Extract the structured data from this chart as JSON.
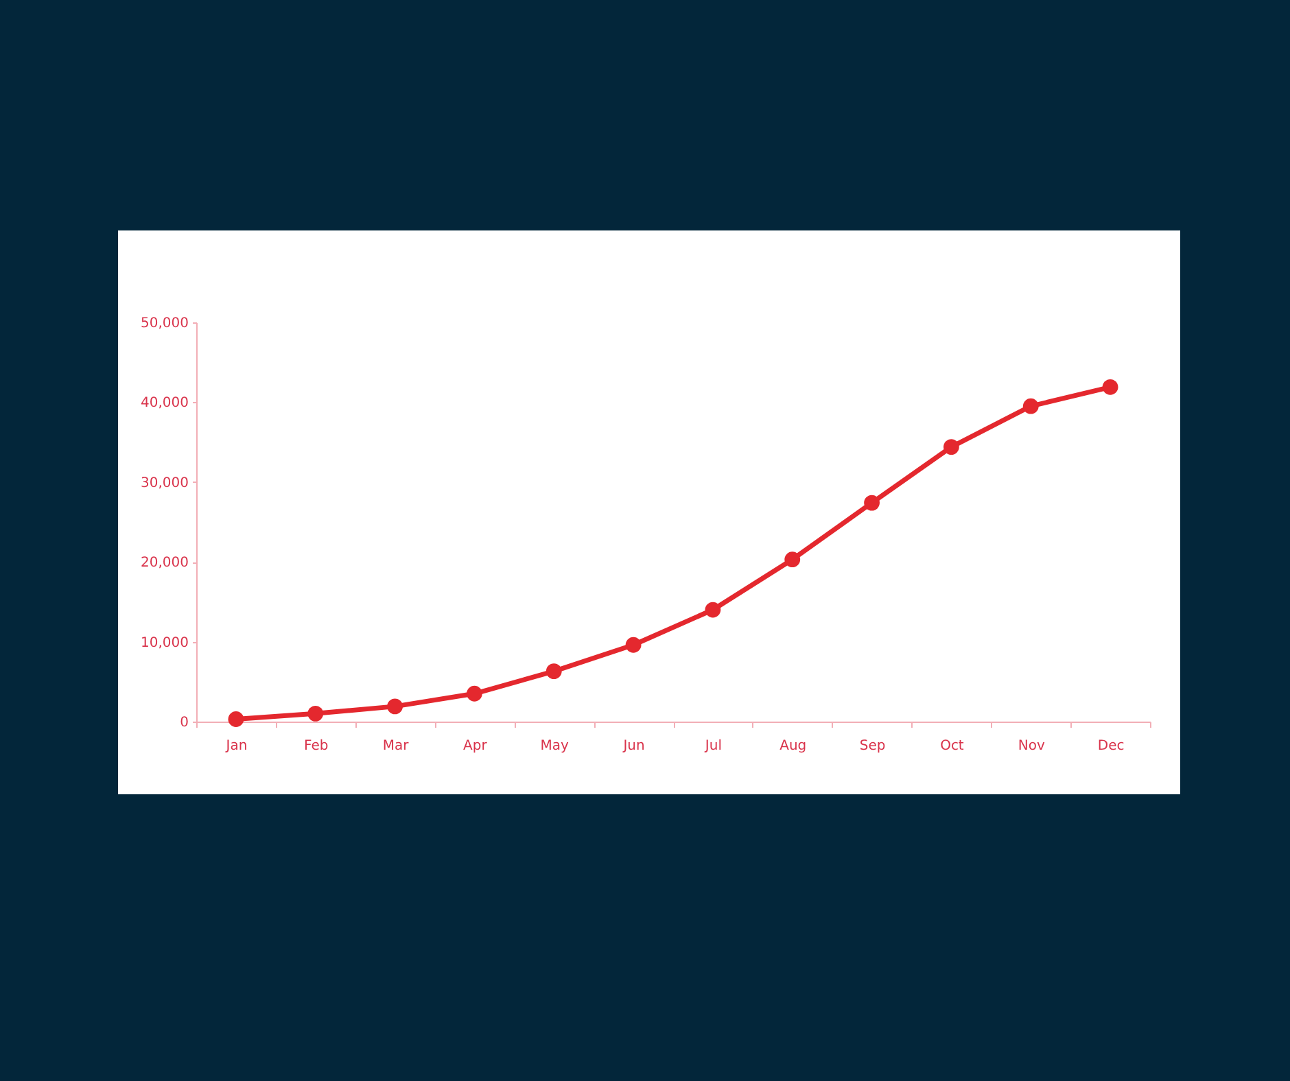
{
  "chart_data": {
    "type": "line",
    "categories": [
      "Jan",
      "Feb",
      "Mar",
      "Apr",
      "May",
      "Jun",
      "Jul",
      "Aug",
      "Sep",
      "Oct",
      "Nov",
      "Dec"
    ],
    "series": [
      {
        "color": "#e4282e",
        "values": [
          300,
          1000,
          1900,
          3500,
          6300,
          9600,
          14000,
          20300,
          27400,
          34400,
          39500,
          41900
        ]
      }
    ],
    "ylim": [
      0,
      50000
    ],
    "yticks": [
      0,
      {
        "value": 10000,
        "label": "10,000"
      },
      {
        "value": 20000,
        "label": "20,000"
      },
      {
        "value": 30000,
        "label": "30,000"
      },
      {
        "value": 40000,
        "label": "40,000"
      },
      {
        "value": 50000,
        "label": "50,000"
      }
    ],
    "marker": "circle",
    "line_style": "solid"
  }
}
